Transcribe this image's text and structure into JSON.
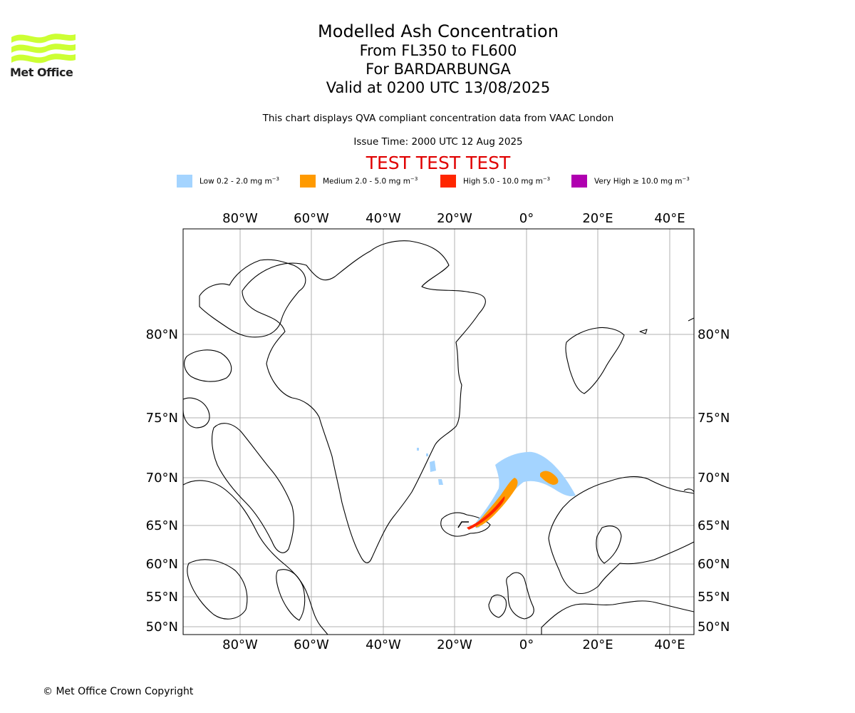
{
  "header": {
    "title": "Modelled Ash Concentration",
    "levels": "From FL350 to FL600",
    "volcano": "For BARDARBUNGA",
    "valid": "Valid at 0200 UTC 13/08/2025",
    "compliance": "This chart displays QVA compliant concentration data from VAAC London",
    "issue": "Issue Time: 2000 UTC 12 Aug 2025",
    "test_banner": "TEST TEST TEST"
  },
  "logo": {
    "text": "Met Office",
    "icon": "met-office-waves-logo",
    "color": "#ccff33"
  },
  "legend": [
    {
      "label": "Low 0.2 - 2.0 mg m",
      "sup": "−3",
      "color": "#a4d4ff"
    },
    {
      "label": "Medium 2.0 - 5.0 mg m",
      "sup": "−3",
      "color": "#ff9a00"
    },
    {
      "label": "High 5.0 - 10.0 mg m",
      "sup": "−3",
      "color": "#ff2600"
    },
    {
      "label": "Very High  ≥  10.0 mg m",
      "sup": "−3",
      "color": "#b000b0"
    }
  ],
  "map": {
    "lon_labels": [
      "80°W",
      "60°W",
      "40°W",
      "20°W",
      "0°",
      "20°E",
      "40°E"
    ],
    "lat_labels": [
      "80°N",
      "75°N",
      "70°N",
      "65°N",
      "60°N",
      "55°N",
      "50°N"
    ],
    "gridline_color": "#b0b0b0"
  },
  "footer": {
    "copyright": "© Met Office Crown Copyright"
  }
}
